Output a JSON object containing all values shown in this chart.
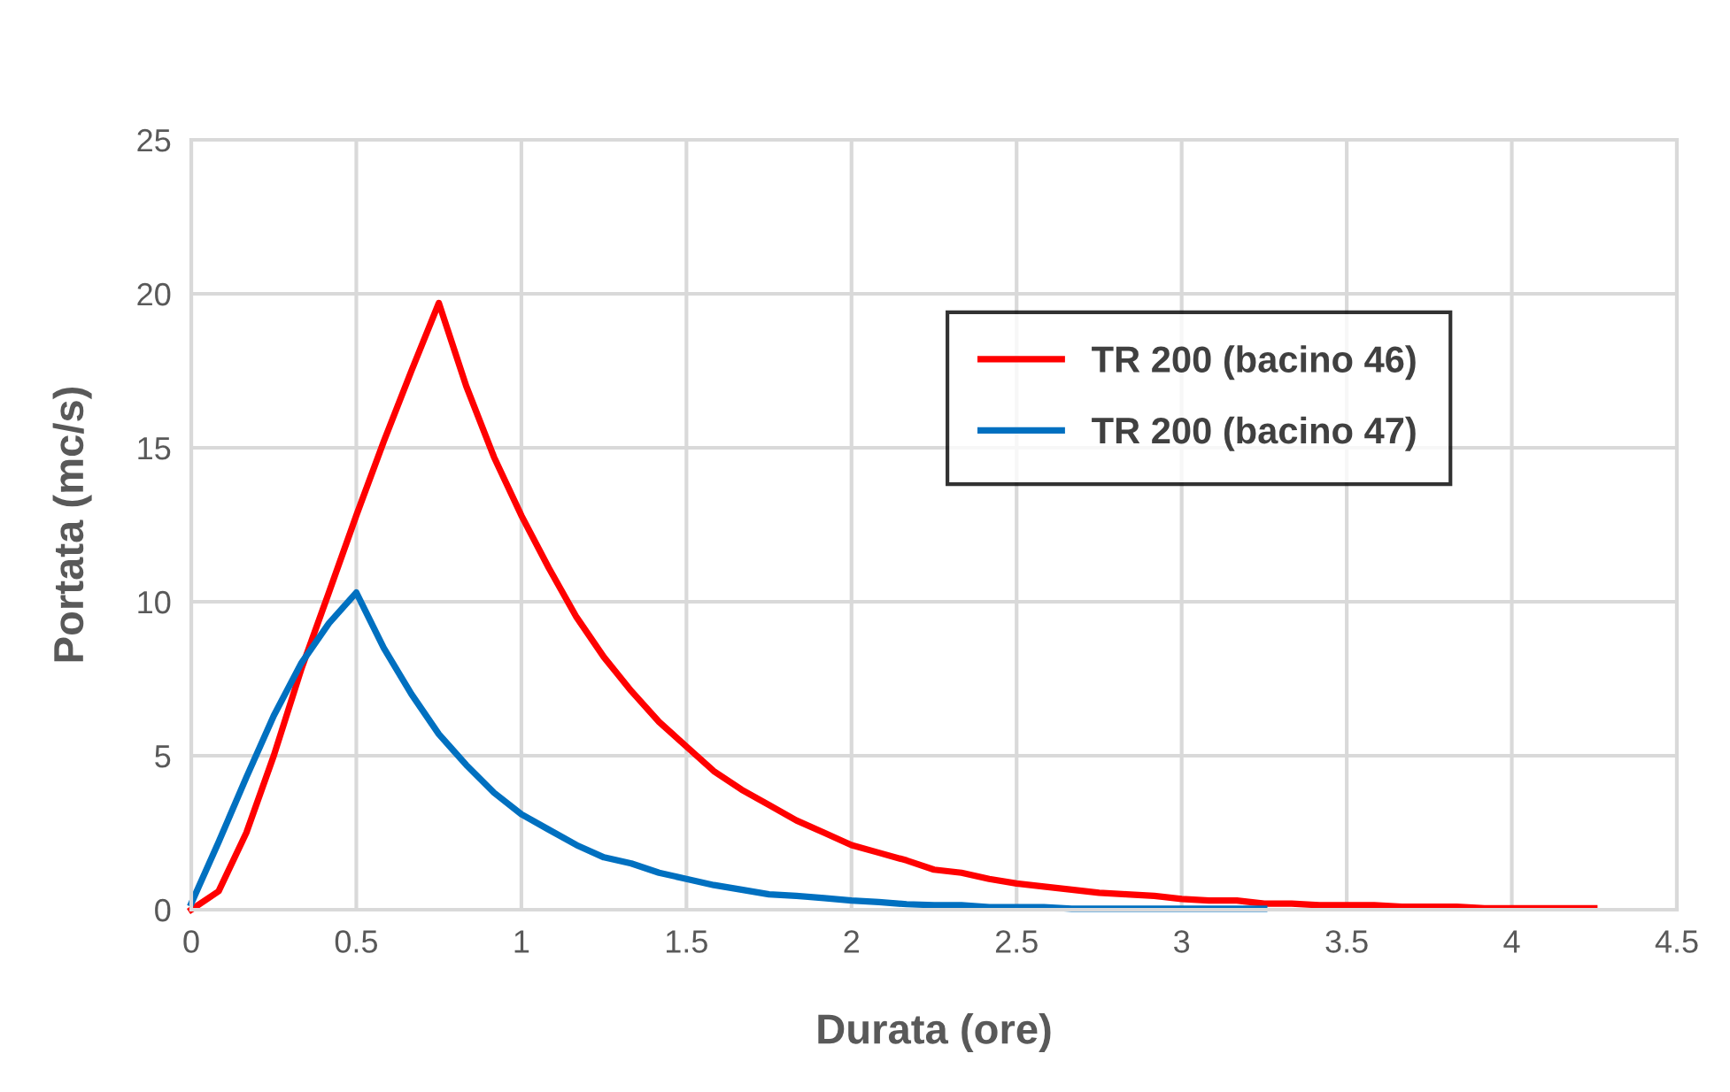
{
  "chart_data": {
    "type": "line",
    "xlabel": "Durata (ore)",
    "ylabel": "Portata (mc/s)",
    "xlim": [
      0,
      4.5
    ],
    "xticks": [
      0,
      0.5,
      1,
      1.5,
      2,
      2.5,
      3,
      3.5,
      4,
      4.5
    ],
    "ylim": [
      0,
      25
    ],
    "yticks": [
      0,
      5,
      10,
      15,
      20,
      25
    ],
    "grid": true,
    "legend": "top right",
    "marker": "none",
    "line_style": "solid",
    "series": [
      {
        "name": "TR 200 (bacino 46)",
        "color": "#ff0000",
        "x": [
          0,
          0.083,
          0.167,
          0.25,
          0.333,
          0.417,
          0.5,
          0.583,
          0.667,
          0.75,
          0.833,
          0.917,
          1.0,
          1.083,
          1.167,
          1.25,
          1.333,
          1.417,
          1.5,
          1.583,
          1.667,
          1.75,
          1.833,
          1.917,
          2.0,
          2.083,
          2.167,
          2.25,
          2.333,
          2.417,
          2.5,
          2.583,
          2.667,
          2.75,
          2.833,
          2.917,
          3.0,
          3.083,
          3.167,
          3.25,
          3.333,
          3.417,
          3.5,
          3.583,
          3.667,
          3.75,
          3.833,
          3.917,
          4.0,
          4.083,
          4.167,
          4.25
        ],
        "values": [
          0,
          0.6,
          2.5,
          5,
          7.8,
          10.3,
          12.8,
          15.2,
          17.5,
          19.7,
          17,
          14.7,
          12.8,
          11.1,
          9.5,
          8.2,
          7.1,
          6.1,
          5.3,
          4.5,
          3.9,
          3.4,
          2.9,
          2.5,
          2.1,
          1.85,
          1.6,
          1.3,
          1.2,
          1.0,
          0.85,
          0.75,
          0.65,
          0.55,
          0.5,
          0.45,
          0.35,
          0.3,
          0.3,
          0.2,
          0.2,
          0.15,
          0.15,
          0.15,
          0.1,
          0.1,
          0.1,
          0.05,
          0.05,
          0.05,
          0.05,
          0.05
        ]
      },
      {
        "name": "TR 200 (bacino 47)",
        "color": "#0070c0",
        "x": [
          0,
          0.083,
          0.167,
          0.25,
          0.333,
          0.417,
          0.5,
          0.583,
          0.667,
          0.75,
          0.833,
          0.917,
          1.0,
          1.083,
          1.167,
          1.25,
          1.333,
          1.417,
          1.5,
          1.583,
          1.667,
          1.75,
          1.833,
          1.917,
          2.0,
          2.083,
          2.167,
          2.25,
          2.333,
          2.417,
          2.5,
          2.583,
          2.667,
          2.75,
          2.833,
          2.917,
          3.0,
          3.083,
          3.167,
          3.25
        ],
        "values": [
          0.2,
          2.2,
          4.3,
          6.3,
          8.0,
          9.3,
          10.3,
          8.5,
          7.0,
          5.7,
          4.7,
          3.8,
          3.1,
          2.6,
          2.1,
          1.7,
          1.5,
          1.2,
          1.0,
          0.8,
          0.65,
          0.5,
          0.45,
          0.38,
          0.3,
          0.25,
          0.18,
          0.15,
          0.15,
          0.08,
          0.08,
          0.08,
          0.03,
          0.03,
          0.03,
          0.03,
          0.03,
          0.03,
          0.03,
          0.03
        ]
      }
    ]
  }
}
